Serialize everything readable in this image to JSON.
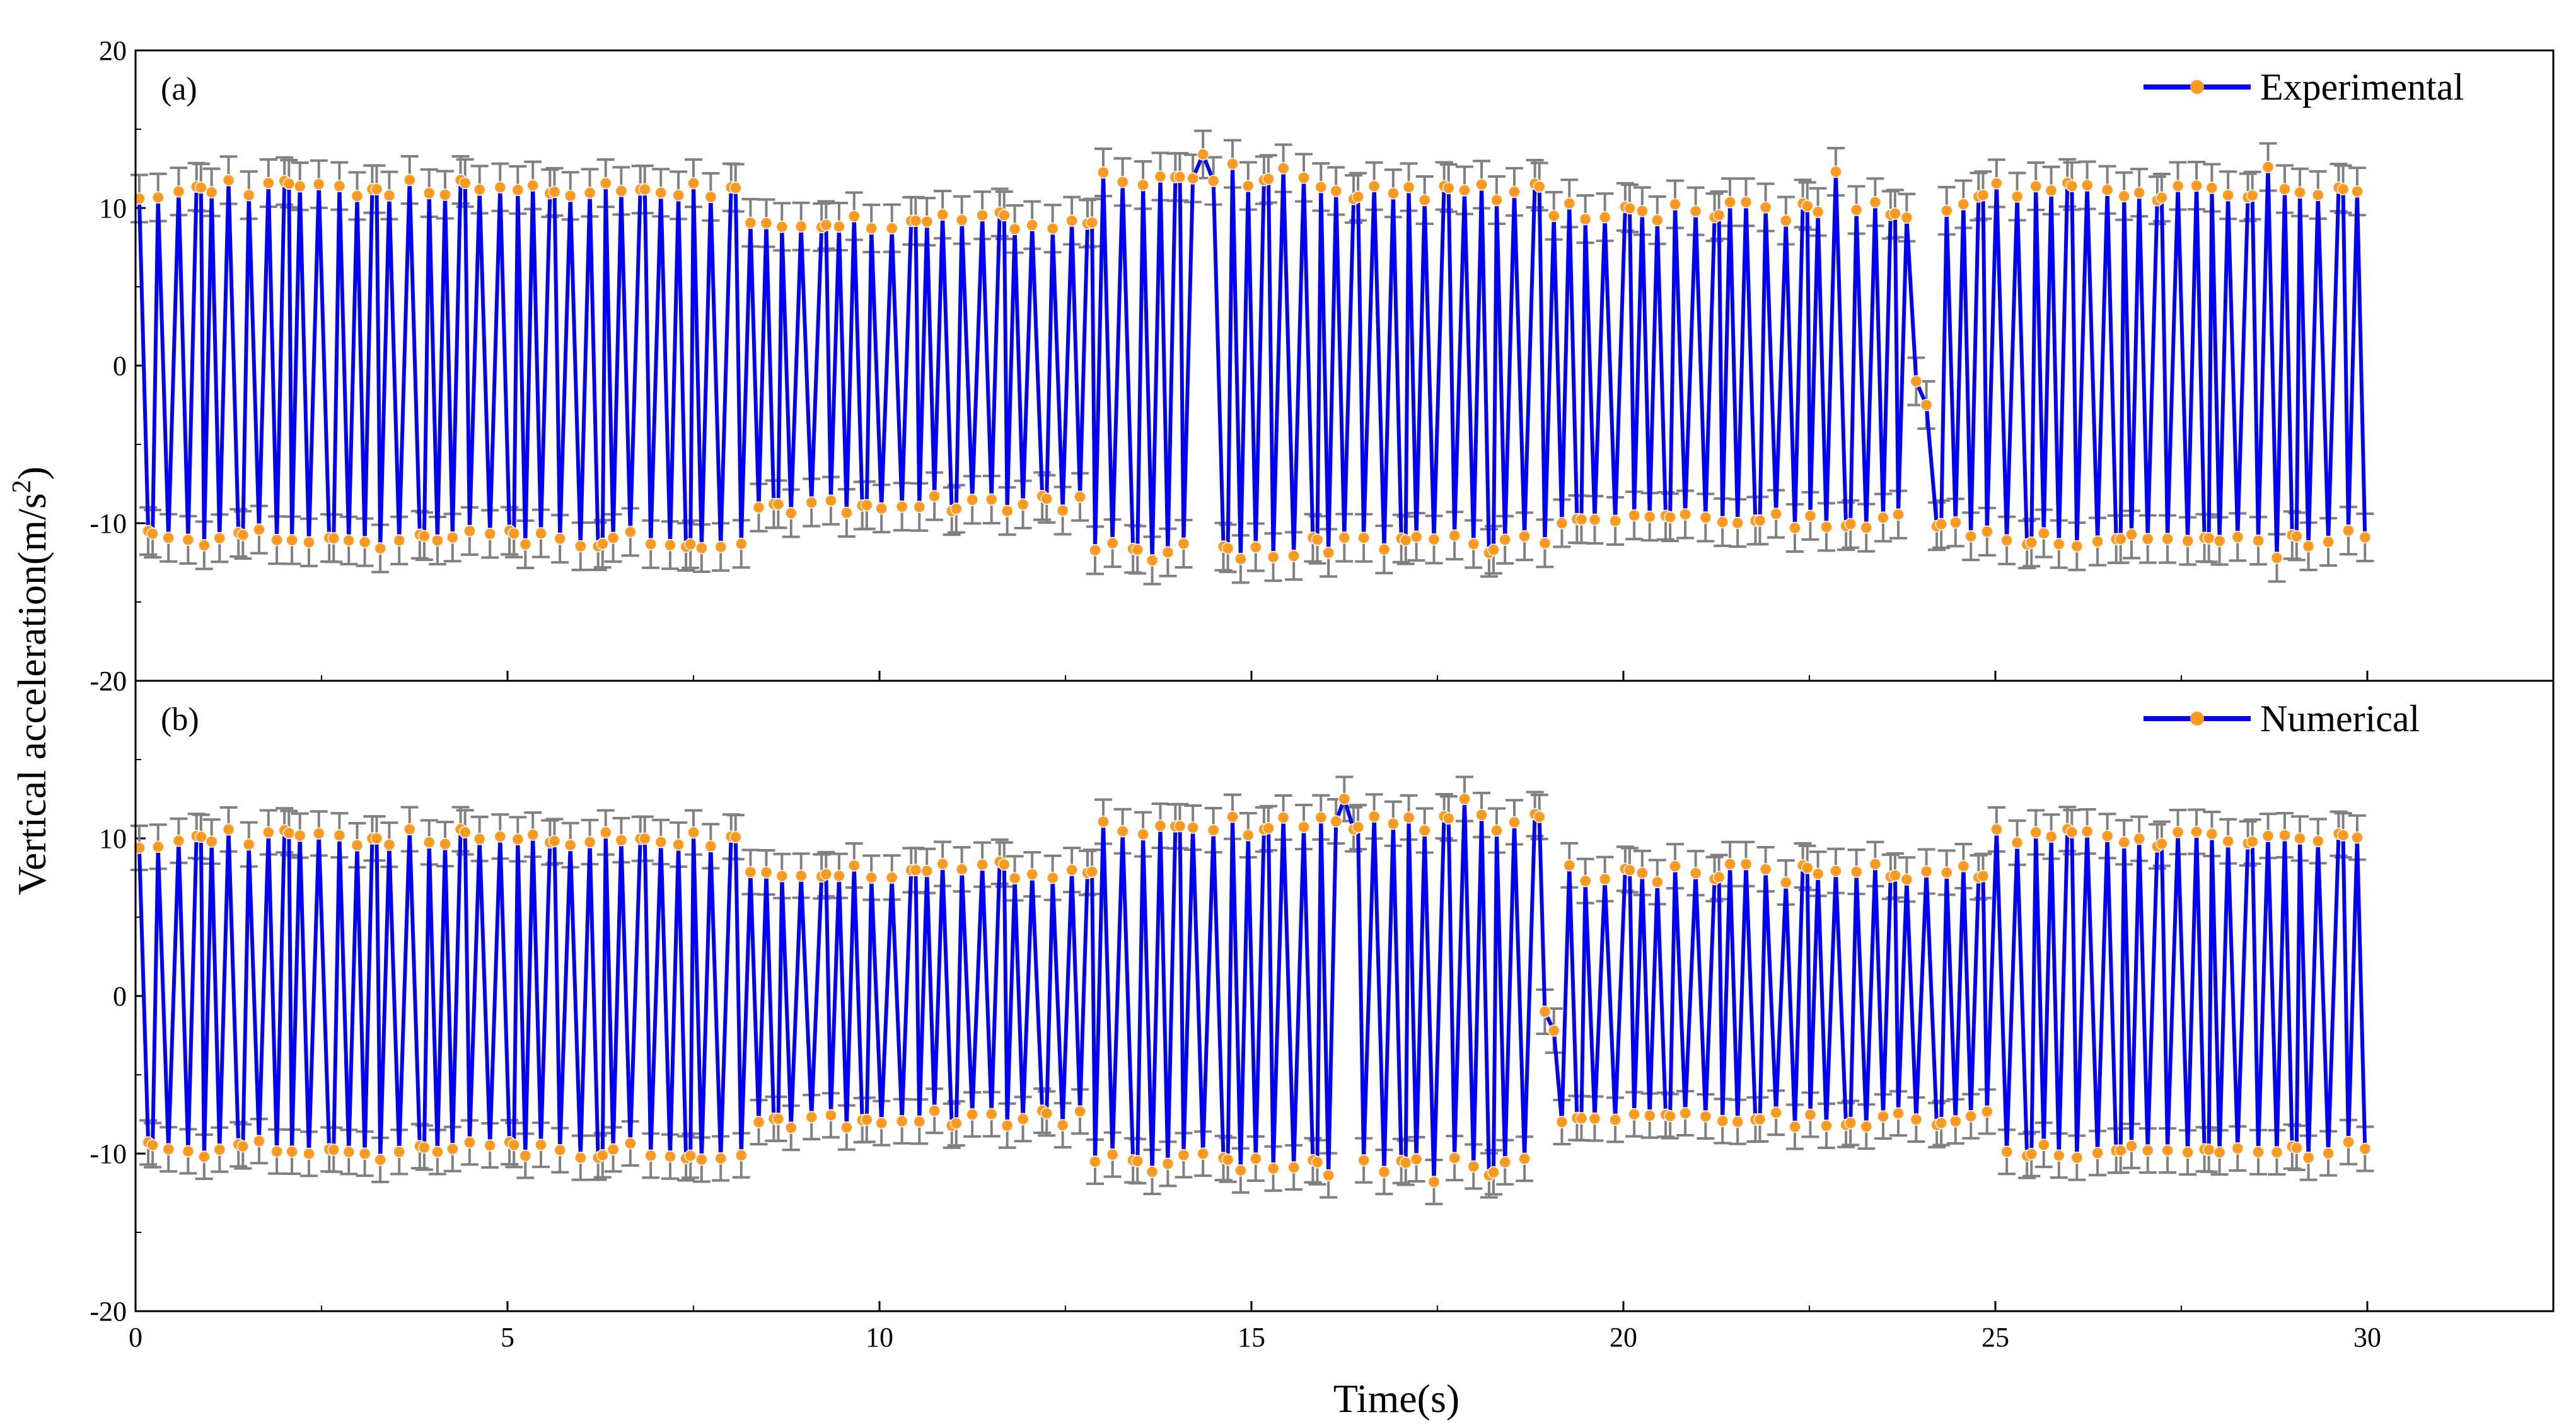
{
  "chart_data": {
    "type": "line",
    "xlabel": "Time(s)",
    "ylabel": "Vertical acceleration(m/s",
    "ylabel_superscript": "2",
    "ylabel_suffix": ")",
    "xlim": [
      0,
      32.5
    ],
    "x_ticks": [
      0,
      5,
      10,
      15,
      20,
      25,
      30
    ],
    "x_tick_labels": [
      "0",
      "5",
      "10",
      "15",
      "20",
      "25",
      "30"
    ],
    "error_bar_color": "#808080",
    "panels": [
      {
        "label": "(a)",
        "legend": "Experimental",
        "legend_position": "top-right",
        "ylim": [
          -20,
          20
        ],
        "y_ticks": [
          -20,
          -10,
          0,
          10,
          20
        ],
        "y_tick_labels": [
          "-20",
          "-10",
          "0",
          "10",
          "20"
        ],
        "line_color": "#0000FF",
        "marker_color": "#FF9A1F",
        "error": 1.5,
        "segments": [
          {
            "start": 0.0,
            "end": 8.2,
            "peak": 11.2,
            "trough": -11.0
          },
          {
            "start": 8.2,
            "end": 12.8,
            "peak": 9.2,
            "trough": -8.8
          },
          {
            "start": 12.8,
            "end": 15.8,
            "peak": 12.0,
            "trough": -11.8
          },
          {
            "start": 15.8,
            "end": 19.0,
            "peak": 11.0,
            "trough": -11.3
          },
          {
            "start": 19.0,
            "end": 24.6,
            "peak": 9.8,
            "trough": -9.8
          },
          {
            "start": 24.6,
            "end": 30.0,
            "peak": 11.0,
            "trough": -11.0
          }
        ],
        "anomalies": [
          {
            "t": 14.4,
            "value": 13.4
          },
          {
            "t": 14.8,
            "value": 12.8
          },
          {
            "t": 22.9,
            "value": 12.3
          },
          {
            "t": 24.0,
            "value": -1.0
          },
          {
            "t": 24.05,
            "value": -2.5
          },
          {
            "t": 28.6,
            "value": 12.6
          },
          {
            "t": 28.75,
            "value": -12.2
          }
        ]
      },
      {
        "label": "(b)",
        "legend": "Numerical",
        "legend_position": "top-right",
        "ylim": [
          -20,
          20
        ],
        "y_ticks": [
          -20,
          -10,
          0,
          10,
          20
        ],
        "y_tick_labels": [
          "-20",
          "-10",
          "0",
          "10",
          "20"
        ],
        "line_color": "#0000FF",
        "marker_color": "#FF9A1F",
        "error": 1.4,
        "segments": [
          {
            "start": 0.0,
            "end": 8.2,
            "peak": 10.0,
            "trough": -9.8
          },
          {
            "start": 8.2,
            "end": 12.8,
            "peak": 8.0,
            "trough": -7.8
          },
          {
            "start": 12.8,
            "end": 15.8,
            "peak": 10.8,
            "trough": -10.6
          },
          {
            "start": 15.8,
            "end": 18.9,
            "peak": 11.0,
            "trough": -10.8
          },
          {
            "start": 18.9,
            "end": 25.0,
            "peak": 7.8,
            "trough": -7.8
          },
          {
            "start": 25.0,
            "end": 30.0,
            "peak": 10.0,
            "trough": -9.8
          }
        ],
        "anomalies": [
          {
            "t": 16.3,
            "value": 12.5
          },
          {
            "t": 17.85,
            "value": 12.5
          },
          {
            "t": 17.5,
            "value": -11.8
          },
          {
            "t": 19.0,
            "value": -1.0
          },
          {
            "t": 19.05,
            "value": -2.2
          }
        ]
      }
    ]
  }
}
